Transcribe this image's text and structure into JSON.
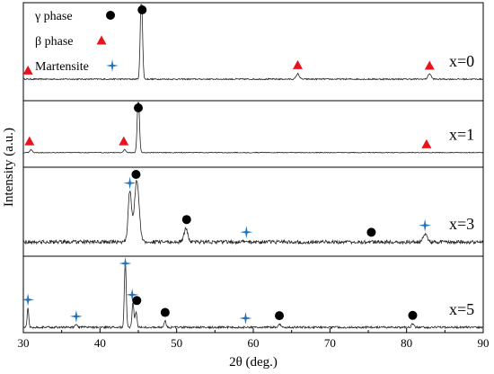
{
  "chart_data": {
    "type": "line",
    "xlabel": "2θ  (deg.)",
    "ylabel": "Intensity (a.u.)",
    "xlim": [
      30,
      90
    ],
    "x_ticks": [
      "30",
      "40",
      "50",
      "60",
      "70",
      "80",
      "90"
    ],
    "y_ticks": [],
    "legend_position": "top-left",
    "grid": false,
    "legend": [
      {
        "label": "γ phase",
        "marker": "circle",
        "color": "#000000"
      },
      {
        "label": "β phase",
        "marker": "triangle",
        "color": "#e8141b"
      },
      {
        "label": "Martensite",
        "marker": "star",
        "color": "#1e73be"
      }
    ],
    "series": [
      {
        "name": "x=0",
        "baseline_fraction": 0.22,
        "noise": 0.007,
        "peaks": [
          {
            "x": 45.4,
            "height": 0.98,
            "width": 0.14
          },
          {
            "x": 65.8,
            "height": 0.06,
            "width": 0.2
          },
          {
            "x": 83.0,
            "height": 0.06,
            "width": 0.2
          }
        ],
        "markers": [
          {
            "type": "circle",
            "x": 45.5
          },
          {
            "type": "triangle",
            "x": 30.6
          },
          {
            "type": "triangle",
            "x": 65.8
          },
          {
            "type": "triangle",
            "x": 83.0
          }
        ]
      },
      {
        "name": "x=1",
        "baseline_fraction": 0.22,
        "noise": 0.006,
        "peaks": [
          {
            "x": 45.0,
            "height": 0.93,
            "width": 0.14
          },
          {
            "x": 43.2,
            "height": 0.05,
            "width": 0.15
          },
          {
            "x": 31.0,
            "height": 0.05,
            "width": 0.15
          }
        ],
        "markers": [
          {
            "type": "circle",
            "x": 45.0
          },
          {
            "type": "triangle",
            "x": 30.8
          },
          {
            "type": "triangle",
            "x": 43.1
          },
          {
            "type": "triangle",
            "x": 82.6
          }
        ]
      },
      {
        "name": "x=3",
        "baseline_fraction": 0.16,
        "noise": 0.022,
        "peaks": [
          {
            "x": 43.9,
            "height": 0.63,
            "width": 0.22
          },
          {
            "x": 44.8,
            "height": 0.76,
            "width": 0.3
          },
          {
            "x": 51.2,
            "height": 0.16,
            "width": 0.25
          },
          {
            "x": 82.4,
            "height": 0.1,
            "width": 0.25
          }
        ],
        "markers": [
          {
            "type": "circle",
            "x": 44.7
          },
          {
            "type": "circle",
            "x": 51.3
          },
          {
            "type": "circle",
            "x": 75.4
          },
          {
            "type": "star",
            "x": 43.9
          },
          {
            "type": "star",
            "x": 59.1
          },
          {
            "type": "star",
            "x": 82.4
          }
        ]
      },
      {
        "name": "x=5",
        "baseline_fraction": 0.07,
        "noise": 0.014,
        "peaks": [
          {
            "x": 30.6,
            "height": 0.28,
            "width": 0.1
          },
          {
            "x": 36.9,
            "height": 0.05,
            "width": 0.12
          },
          {
            "x": 43.3,
            "height": 0.95,
            "width": 0.12
          },
          {
            "x": 44.3,
            "height": 0.35,
            "width": 0.12
          },
          {
            "x": 44.7,
            "height": 0.22,
            "width": 0.12
          },
          {
            "x": 48.5,
            "height": 0.1,
            "width": 0.12
          },
          {
            "x": 63.4,
            "height": 0.05,
            "width": 0.15
          },
          {
            "x": 80.8,
            "height": 0.05,
            "width": 0.15
          }
        ],
        "markers": [
          {
            "type": "star",
            "x": 30.6
          },
          {
            "type": "star",
            "x": 36.9
          },
          {
            "type": "star",
            "x": 43.3
          },
          {
            "type": "star",
            "x": 44.2
          },
          {
            "type": "circle",
            "x": 44.8
          },
          {
            "type": "circle",
            "x": 48.5
          },
          {
            "type": "star",
            "x": 59.0
          },
          {
            "type": "circle",
            "x": 63.4
          },
          {
            "type": "circle",
            "x": 80.8
          }
        ]
      }
    ]
  }
}
